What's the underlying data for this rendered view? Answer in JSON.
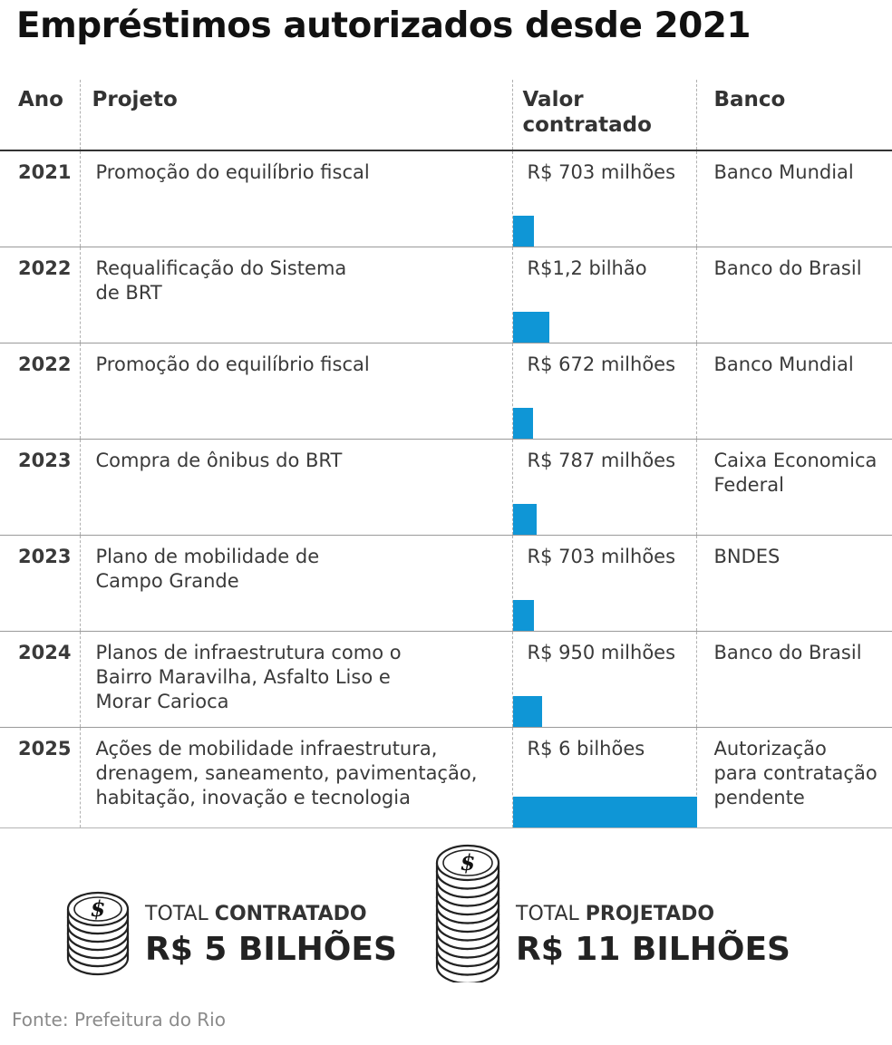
{
  "title": "Empréstimos autorizados desde 2021",
  "headers": {
    "ano": "Ano",
    "projeto": "Projeto",
    "valor_line1": "Valor",
    "valor_line2": "contratado",
    "banco": "Banco"
  },
  "rows": [
    {
      "ano": "2021",
      "projeto": [
        "Promoção do equilíbrio fiscal"
      ],
      "valor": "R$ 703 milhões",
      "banco": [
        "Banco Mundial"
      ]
    },
    {
      "ano": "2022",
      "projeto": [
        "Requalificação do Sistema",
        "de BRT"
      ],
      "valor": "R$1,2 bilhão",
      "banco": [
        "Banco do Brasil"
      ]
    },
    {
      "ano": "2022",
      "projeto": [
        "Promoção do equilíbrio fiscal"
      ],
      "valor": "R$ 672 milhões",
      "banco": [
        "Banco Mundial"
      ]
    },
    {
      "ano": "2023",
      "projeto": [
        "Compra de ônibus do BRT"
      ],
      "valor": "R$ 787 milhões",
      "banco": [
        "Caixa Economica",
        "Federal"
      ]
    },
    {
      "ano": "2023",
      "projeto": [
        "Plano de mobilidade de",
        "Campo Grande"
      ],
      "valor": "R$ 703 milhões",
      "banco": [
        "BNDES"
      ]
    },
    {
      "ano": "2024",
      "projeto": [
        "Planos de infraestrutura como o",
        "Bairro Maravilha, Asfalto Liso e",
        "Morar Carioca"
      ],
      "valor": "R$ 950 milhões",
      "banco": [
        "Banco do Brasil"
      ]
    },
    {
      "ano": "2025",
      "projeto": [
        "Ações de mobilidade infraestrutura,",
        "drenagem, saneamento, pavimentação,",
        "habitação, inovação e tecnologia"
      ],
      "valor": "R$ 6 bilhões",
      "banco": [
        "Autorização",
        "para contratação",
        "pendente"
      ]
    }
  ],
  "chart_data": {
    "type": "bar",
    "orientation": "horizontal",
    "categories": [
      "2021",
      "2022",
      "2022",
      "2023",
      "2023",
      "2024",
      "2025"
    ],
    "values": [
      703,
      1200,
      672,
      787,
      703,
      950,
      6000
    ],
    "unit": "R$ milhões",
    "xlim": [
      0,
      6000
    ],
    "bar_color": "#0f96d6"
  },
  "totals": {
    "contratado": {
      "label_prefix": "TOTAL ",
      "label_bold": "CONTRATADO",
      "value": "R$ 5 BILHÕES"
    },
    "projetado": {
      "label_prefix": "TOTAL ",
      "label_bold": "PROJETADO",
      "value": "R$ 11 BILHÕES"
    }
  },
  "coin_symbol": "$",
  "source": "Fonte: Prefeitura do Rio"
}
